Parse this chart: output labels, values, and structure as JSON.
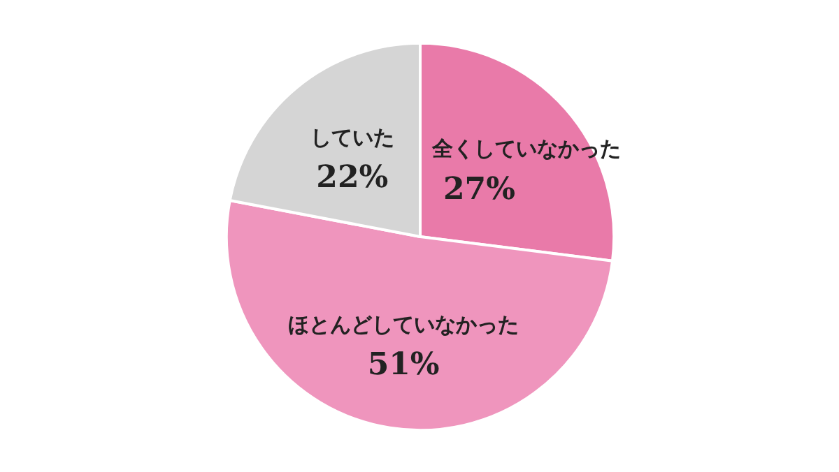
{
  "chart_data": {
    "type": "pie",
    "categories": [
      "全くしていなかった",
      "ほとんどしていなかった",
      "していた"
    ],
    "values": [
      27,
      51,
      22
    ],
    "colors": [
      "#e97aa9",
      "#ef95bd",
      "#d5d5d5"
    ],
    "value_labels": [
      "27%",
      "51%",
      "22%"
    ]
  }
}
